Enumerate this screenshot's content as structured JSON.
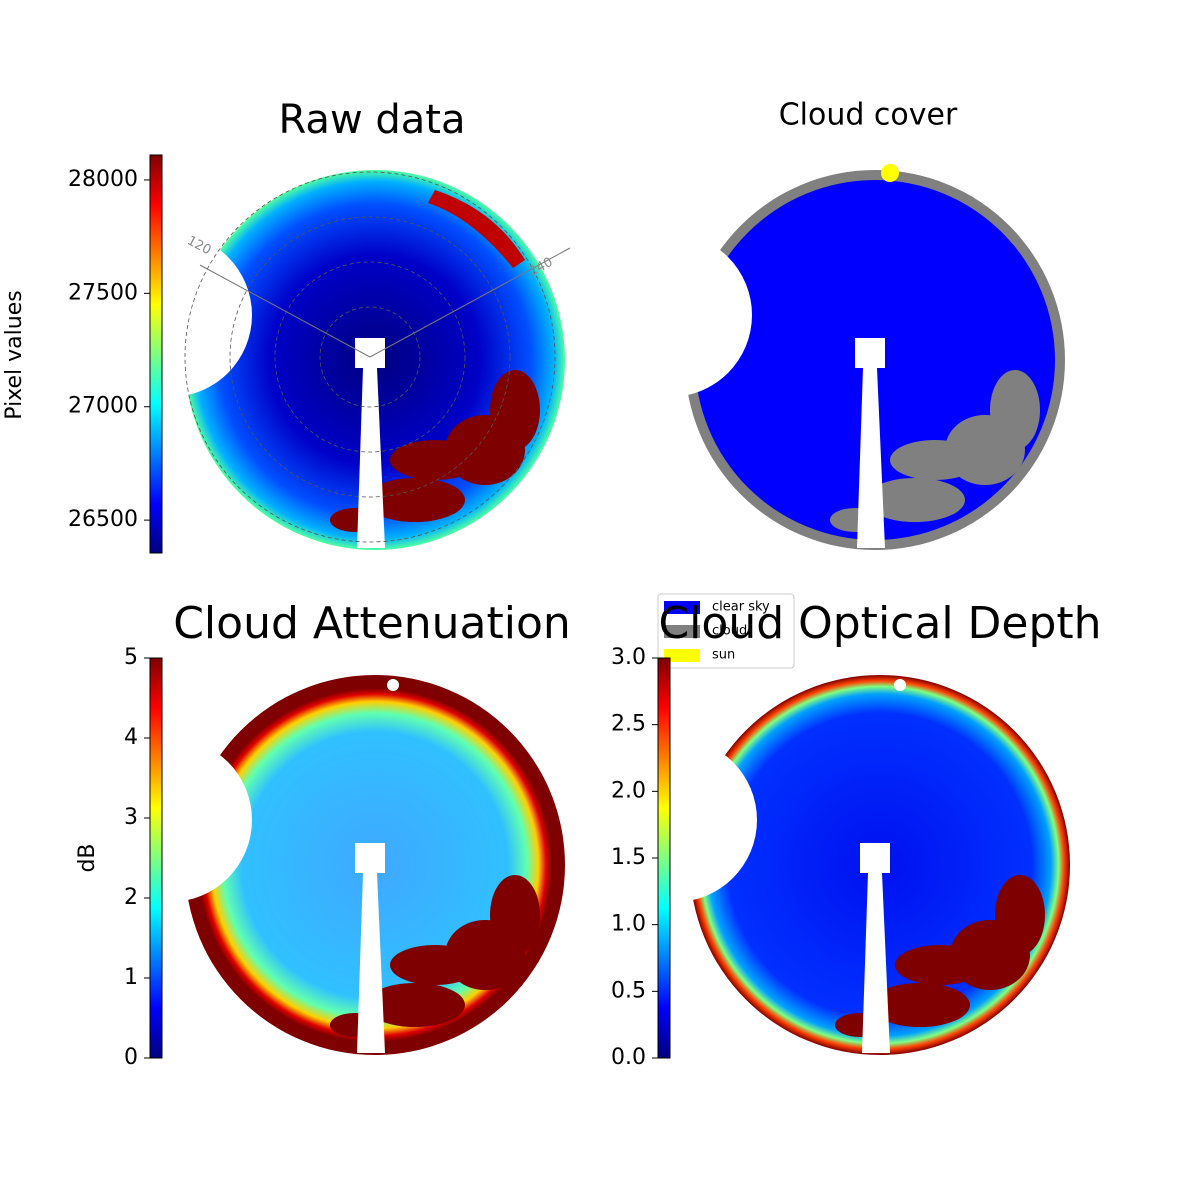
{
  "chart_data": [
    {
      "type": "image",
      "title": "Raw data",
      "colorbar_label": "Pixel values",
      "colormap": "jet",
      "ylim": [
        26355,
        28110
      ],
      "yticks": [
        26500,
        27000,
        27500,
        28000
      ],
      "polar_labels": [
        "120",
        "240"
      ]
    },
    {
      "type": "image",
      "title": "Cloud cover",
      "legend": [
        {
          "name": "clear sky",
          "color": "#0000ff"
        },
        {
          "name": "cloud",
          "color": "#808080"
        },
        {
          "name": "sun",
          "color": "#ffff00"
        }
      ]
    },
    {
      "type": "image",
      "title": "Cloud Attenuation",
      "colorbar_label": "dB",
      "colormap": "jet",
      "ylim": [
        0,
        5
      ],
      "yticks": [
        0,
        1,
        2,
        3,
        4,
        5
      ]
    },
    {
      "type": "image",
      "title": "Cloud Optical Depth",
      "colormap": "jet",
      "ylim": [
        0,
        3
      ],
      "yticks": [
        {
          "value": 0,
          "label": "0.0"
        },
        0.5,
        {
          "value": 1,
          "label": "1.0"
        },
        1.5,
        {
          "value": 2,
          "label": "2.0"
        },
        2.5,
        {
          "value": 3,
          "label": "3.0"
        }
      ]
    }
  ]
}
